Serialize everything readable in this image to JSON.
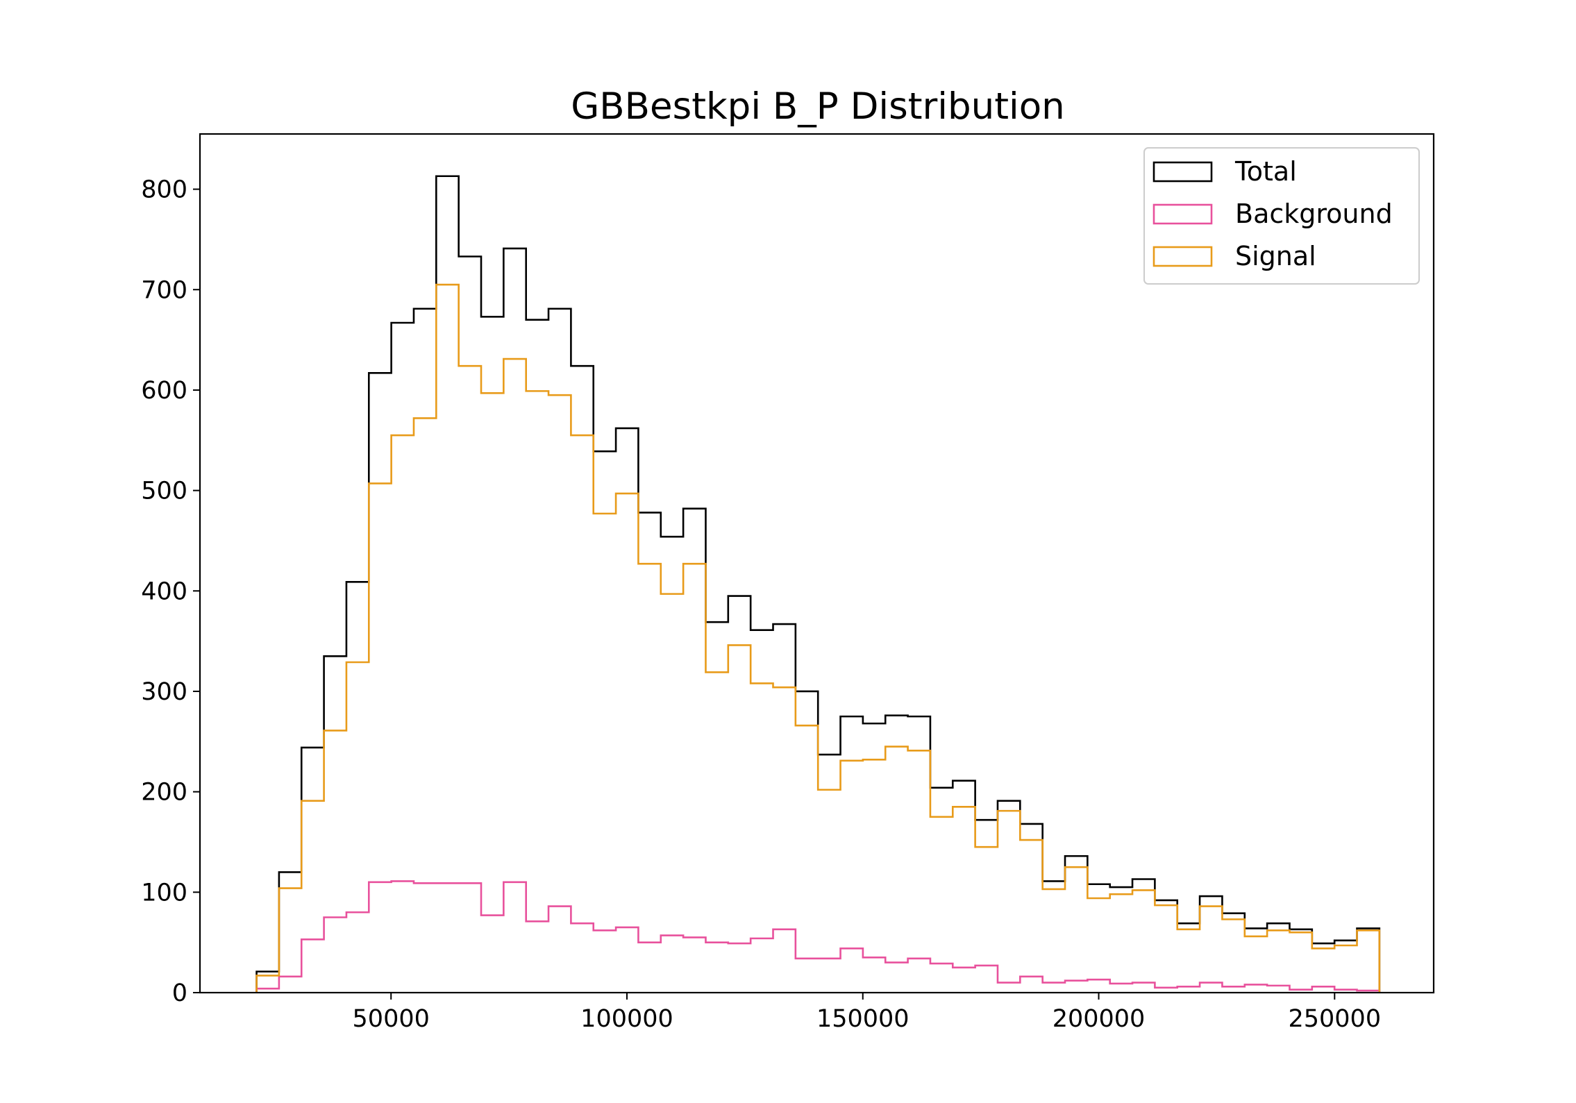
{
  "chart_data": {
    "type": "histogram",
    "title": "GBBestkpi B_P Distribution",
    "xlabel": "",
    "ylabel": "",
    "histtype": "step",
    "bin_start": 21500,
    "bin_width": 4760,
    "xlim": [
      9500,
      271000
    ],
    "ylim": [
      0,
      855
    ],
    "xticks": [
      50000,
      100000,
      150000,
      200000,
      250000
    ],
    "yticks": [
      0,
      100,
      200,
      300,
      400,
      500,
      600,
      700,
      800
    ],
    "legend": {
      "position": "upper right"
    },
    "grid": false,
    "series": [
      {
        "name": "Total",
        "color": "#000000",
        "values": [
          21,
          120,
          244,
          335,
          409,
          617,
          667,
          681,
          813,
          733,
          673,
          741,
          670,
          681,
          624,
          539,
          562,
          478,
          454,
          482,
          369,
          395,
          361,
          367,
          300,
          237,
          275,
          268,
          276,
          275,
          204,
          211,
          172,
          191,
          168,
          111,
          136,
          108,
          105,
          113,
          92,
          69,
          96,
          79,
          64,
          69,
          63,
          49,
          52,
          64
        ]
      },
      {
        "name": "Background",
        "color": "#e8519c",
        "values": [
          4,
          16,
          53,
          75,
          80,
          110,
          111,
          109,
          109,
          109,
          77,
          110,
          71,
          86,
          69,
          62,
          65,
          50,
          57,
          55,
          50,
          49,
          54,
          63,
          34,
          34,
          44,
          35,
          30,
          34,
          29,
          25,
          27,
          10,
          16,
          10,
          12,
          13,
          9,
          10,
          5,
          6,
          10,
          6,
          8,
          7,
          3,
          6,
          3,
          2
        ]
      },
      {
        "name": "Signal",
        "color": "#e89b1a",
        "values": [
          17,
          104,
          191,
          261,
          329,
          507,
          555,
          572,
          705,
          624,
          597,
          631,
          599,
          595,
          555,
          477,
          497,
          427,
          397,
          427,
          319,
          346,
          308,
          304,
          266,
          202,
          231,
          232,
          245,
          241,
          175,
          185,
          145,
          181,
          152,
          103,
          125,
          94,
          98,
          102,
          87,
          63,
          86,
          73,
          56,
          62,
          60,
          44,
          47,
          62
        ]
      }
    ]
  }
}
